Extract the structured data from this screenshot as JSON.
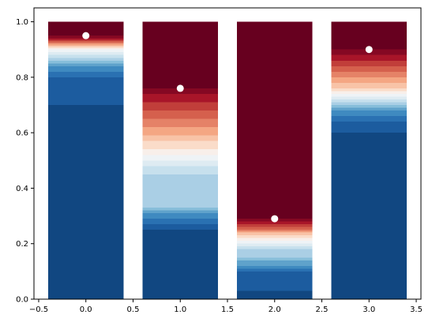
{
  "chart_data": {
    "type": "bar",
    "title": "",
    "xlabel": "",
    "ylabel": "",
    "xlim": [
      -0.55,
      3.55
    ],
    "ylim": [
      0,
      1.05
    ],
    "bar_width": 0.8,
    "grid": false,
    "legend": "none",
    "colormap": "RdBu_r (diverging blue-white-red, 20 bands)",
    "xticks": [
      {
        "value": -0.5,
        "label": "−0.5"
      },
      {
        "value": 0.0,
        "label": "0.0"
      },
      {
        "value": 0.5,
        "label": "0.5"
      },
      {
        "value": 1.0,
        "label": "1.0"
      },
      {
        "value": 1.5,
        "label": "1.5"
      },
      {
        "value": 2.0,
        "label": "2.0"
      },
      {
        "value": 2.5,
        "label": "2.5"
      },
      {
        "value": 3.0,
        "label": "3.0"
      },
      {
        "value": 3.5,
        "label": "3.5"
      }
    ],
    "yticks": [
      {
        "value": 0.0,
        "label": "0.0"
      },
      {
        "value": 0.2,
        "label": "0.2"
      },
      {
        "value": 0.4,
        "label": "0.4"
      },
      {
        "value": 0.6,
        "label": "0.6"
      },
      {
        "value": 0.8,
        "label": "0.8"
      },
      {
        "value": 1.0,
        "label": "1.0"
      }
    ],
    "bars": [
      {
        "x": 0,
        "marker_y": 0.95,
        "bands": [
          0.7,
          0.8,
          0.82,
          0.84,
          0.85,
          0.86,
          0.87,
          0.88,
          0.89,
          0.9,
          0.905,
          0.91,
          0.915,
          0.92,
          0.925,
          0.93,
          0.935,
          0.94,
          0.95,
          1.0
        ]
      },
      {
        "x": 1,
        "marker_y": 0.76,
        "bands": [
          0.25,
          0.27,
          0.29,
          0.31,
          0.32,
          0.33,
          0.45,
          0.48,
          0.5,
          0.52,
          0.54,
          0.57,
          0.59,
          0.62,
          0.65,
          0.68,
          0.71,
          0.74,
          0.76,
          1.0
        ]
      },
      {
        "x": 2,
        "marker_y": 0.29,
        "bands": [
          0.03,
          0.1,
          0.11,
          0.12,
          0.14,
          0.15,
          0.18,
          0.19,
          0.2,
          0.21,
          0.22,
          0.23,
          0.24,
          0.245,
          0.25,
          0.26,
          0.27,
          0.28,
          0.29,
          1.0
        ]
      },
      {
        "x": 3,
        "marker_y": 0.9,
        "bands": [
          0.6,
          0.64,
          0.66,
          0.68,
          0.69,
          0.7,
          0.71,
          0.72,
          0.73,
          0.74,
          0.75,
          0.76,
          0.78,
          0.8,
          0.82,
          0.84,
          0.86,
          0.88,
          0.9,
          1.0
        ]
      }
    ],
    "band_colors": [
      "#114781",
      "#1c5c9f",
      "#2a71b2",
      "#3f8ac0",
      "#5fa2cb",
      "#87beda",
      "#aacfe5",
      "#c7e0ed",
      "#deebf2",
      "#eef3f6",
      "#f8efea",
      "#fadcc9",
      "#f8c3a7",
      "#f4a683",
      "#e58267",
      "#d5604d",
      "#c13e3a",
      "#a81529",
      "#850823",
      "#67001f"
    ],
    "marker_color": "#ffffff"
  }
}
